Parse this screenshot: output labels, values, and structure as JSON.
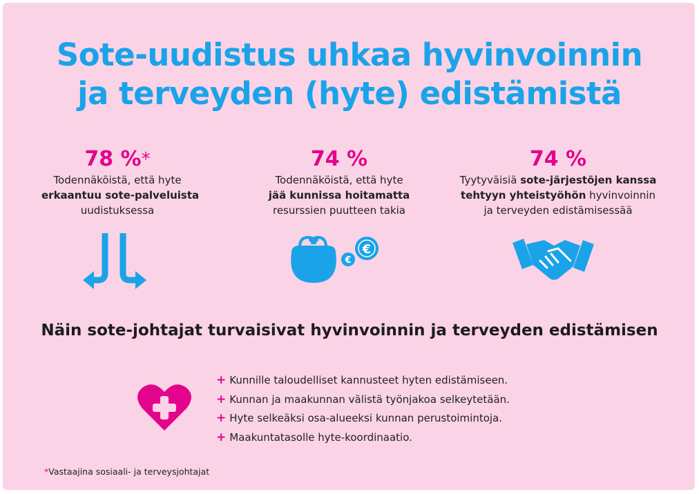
{
  "title": {
    "line1": "Sote-uudistus uhkaa hyvinvoinnin",
    "line2": "ja terveyden (hyte) edistämistä"
  },
  "stats": [
    {
      "percent": "78 %",
      "asterisk": "*",
      "line1": "Todennäköistä, että hyte",
      "line2_bold": "erkaantuu sote-palveluista",
      "line3": "uudistuksessa",
      "icon": "diverging-arrows-icon"
    },
    {
      "percent": "74 %",
      "line1": "Todennäköistä, että hyte",
      "line2_bold": "jää kunnissa hoitamatta",
      "line3": "resurssien puutteen takia",
      "icon": "coin-purse-euro-icon"
    },
    {
      "percent": "74 %",
      "line1_normal": "Tyytyväisiä ",
      "line1_bold": "sote-järjestöjen kanssa",
      "line2_bold": "tehtyyn yhteistyöhön",
      "line2_normal": " hyvinvoinnin",
      "line3": "ja terveyden edistämisessää",
      "icon": "handshake-icon"
    }
  ],
  "subtitle": "Näin sote-johtajat turvaisivat hyvinvoinnin ja terveyden edistämisen",
  "list": {
    "marker": "+",
    "items": [
      "Kunnille taloudelliset kannusteet hyten edistämiseen.",
      "Kunnan ja maakunnan välistä työnjakoa selkeytetään.",
      "Hyte selkeäksi osa-alueeksi kunnan perustoimintoja.",
      "Maakuntatasolle hyte-koordinaatio."
    ],
    "icon": "heart-plus-icon"
  },
  "footnote": {
    "asterisk": "*",
    "text": "Vastaajina sosiaali- ja terveysjohtajat"
  },
  "colors": {
    "background": "#fbd3e6",
    "title": "#1aa3e8",
    "accent": "#e2058c",
    "icon_blue": "#1aa3e8"
  }
}
